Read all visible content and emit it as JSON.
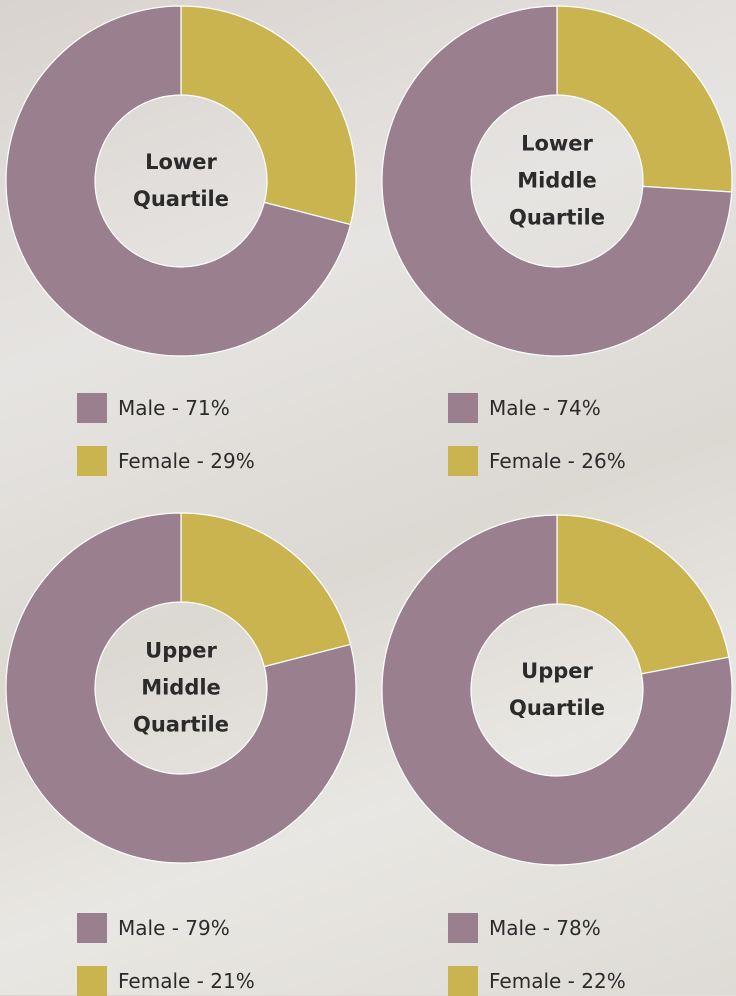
{
  "chart_data": [
    {
      "type": "donut",
      "title": "Lower Quartile",
      "values": [
        71,
        29
      ],
      "value_labels": [
        "Male - 71%",
        "Female - 29%"
      ],
      "colors": [
        "#9a7f8f",
        "#c9b44f"
      ]
    },
    {
      "type": "donut",
      "title": "Lower Middle Quartile",
      "values": [
        74,
        26
      ],
      "value_labels": [
        "Male - 74%",
        "Female - 26%"
      ],
      "colors": [
        "#9a7f8f",
        "#c9b44f"
      ]
    },
    {
      "type": "donut",
      "title": "Upper Middle Quartile",
      "values": [
        79,
        21
      ],
      "value_labels": [
        "Male - 79%",
        "Female - 21%"
      ],
      "colors": [
        "#9a7f8f",
        "#c9b44f"
      ]
    },
    {
      "type": "donut",
      "title": "Upper Quartile",
      "values": [
        78,
        22
      ],
      "value_labels": [
        "Male - 78%",
        "Female - 22%"
      ],
      "colors": [
        "#9a7f8f",
        "#c9b44f"
      ]
    }
  ]
}
